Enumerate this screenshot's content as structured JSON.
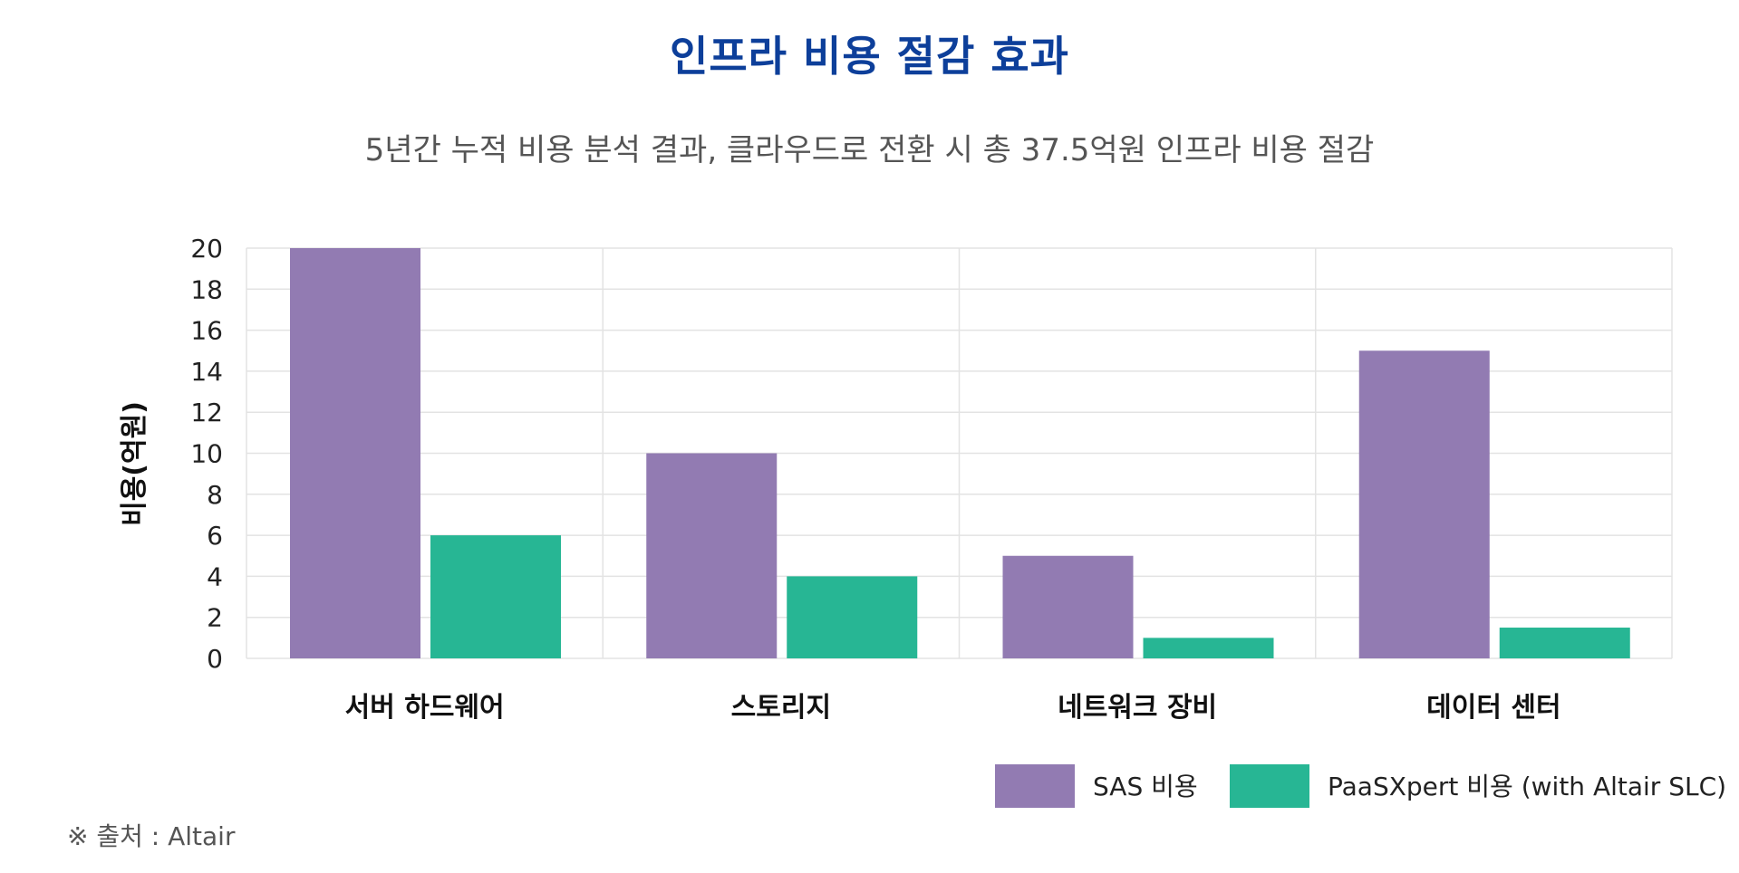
{
  "header": {
    "title": "인프라 비용 절감 효과",
    "subtitle": "5년간 누적 비용 분석 결과, 클라우드로 전환 시 총 37.5억원 인프라 비용 절감"
  },
  "footer": {
    "source": "※ 출처 : Altair"
  },
  "colors": {
    "sas": "#927bb2",
    "paasxpert": "#27b694",
    "title": "#0d3f9a"
  },
  "chart_data": {
    "type": "bar",
    "title": "인프라 비용 절감 효과",
    "subtitle": "5년간 누적 비용 분석 결과, 클라우드로 전환 시 총 37.5억원 인프라 비용 절감",
    "xlabel": "",
    "ylabel": "비용(억원)",
    "ylim": [
      0,
      20
    ],
    "yticks": [
      0,
      2,
      4,
      6,
      8,
      10,
      12,
      14,
      16,
      18,
      20
    ],
    "categories": [
      "서버 하드웨어",
      "스토리지",
      "네트워크 장비",
      "데이터 센터"
    ],
    "series": [
      {
        "name": "SAS 비용",
        "values": [
          20,
          10,
          5,
          15
        ]
      },
      {
        "name": "PaaSXpert 비용 (with Altair SLC)",
        "values": [
          6,
          4,
          1,
          1.5
        ]
      }
    ],
    "grid": true,
    "legend_position": "bottom-right"
  }
}
